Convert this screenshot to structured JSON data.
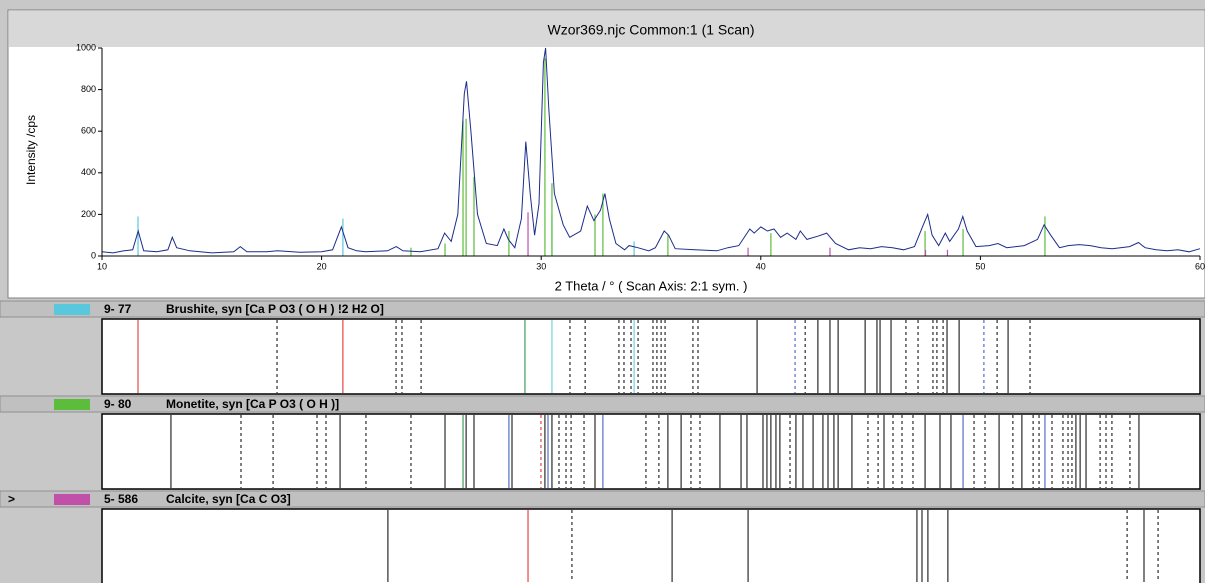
{
  "chart_data": {
    "type": "line",
    "title": "Wzor369.njc Common:1 (1 Scan)",
    "y_label": "Intensity /cps",
    "x_label": "2 Theta / °  ( Scan Axis: 2:1 sym. )",
    "xlim": [
      10,
      60
    ],
    "xticks": [
      10,
      20,
      30,
      40,
      50,
      60
    ],
    "ylim": [
      0,
      1000
    ],
    "yticks": [
      0,
      200,
      400,
      600,
      800,
      1000
    ],
    "series": [
      {
        "color": "#1c2c8c",
        "x": [
          10,
          10.5,
          11,
          11.4,
          11.65,
          11.9,
          12.5,
          13,
          13.2,
          13.4,
          14,
          15,
          16,
          16.3,
          16.6,
          17.5,
          18,
          19,
          20,
          20.5,
          20.9,
          21.2,
          21.6,
          22,
          23,
          23.4,
          23.7,
          24.5,
          25.3,
          25.6,
          25.9,
          26.2,
          26.5,
          26.6,
          26.8,
          27.1,
          27.5,
          28,
          28.3,
          28.5,
          28.8,
          29.1,
          29.3,
          29.5,
          29.7,
          29.9,
          30.1,
          30.2,
          30.35,
          30.6,
          31,
          31.3,
          31.8,
          32.1,
          32.4,
          32.7,
          32.9,
          33.1,
          33.4,
          33.8,
          34,
          34.4,
          34.9,
          35.2,
          35.6,
          35.8,
          36.1,
          37,
          38,
          38.5,
          39,
          39.5,
          39.7,
          40,
          40.3,
          40.6,
          40.9,
          41.2,
          41.6,
          41.8,
          42.1,
          42.6,
          43,
          43.4,
          44,
          44.5,
          45,
          45.5,
          46,
          46.5,
          47,
          47.4,
          47.6,
          47.8,
          48.1,
          48.4,
          48.6,
          49,
          49.2,
          49.4,
          49.8,
          50.4,
          50.8,
          51.2,
          52,
          52.6,
          52.9,
          53.2,
          53.6,
          54,
          54.5,
          55,
          55.5,
          56,
          56.8,
          57.2,
          57.5,
          58,
          58.5,
          59,
          59.5,
          60
        ],
        "values": [
          20,
          15,
          25,
          30,
          120,
          25,
          20,
          30,
          90,
          40,
          25,
          15,
          20,
          45,
          20,
          20,
          25,
          18,
          20,
          30,
          140,
          40,
          25,
          20,
          25,
          45,
          25,
          20,
          35,
          110,
          70,
          200,
          780,
          840,
          600,
          200,
          60,
          50,
          130,
          80,
          40,
          180,
          550,
          300,
          100,
          250,
          930,
          1000,
          700,
          300,
          150,
          90,
          120,
          240,
          170,
          220,
          300,
          180,
          60,
          30,
          50,
          40,
          25,
          40,
          120,
          100,
          35,
          30,
          25,
          40,
          50,
          130,
          110,
          140,
          120,
          130,
          90,
          110,
          80,
          120,
          80,
          95,
          110,
          60,
          30,
          40,
          35,
          45,
          40,
          30,
          45,
          150,
          200,
          100,
          50,
          110,
          70,
          130,
          190,
          120,
          45,
          50,
          60,
          40,
          50,
          80,
          150,
          100,
          40,
          50,
          55,
          50,
          40,
          35,
          45,
          65,
          40,
          30,
          25,
          30,
          20,
          35
        ]
      }
    ]
  },
  "phases": [
    {
      "code": "9- 77",
      "name": "Brushite, syn  [Ca P O3 ( O H ) !2 H2 O]",
      "color": "#5ac8dc",
      "stick_x": [
        11.64,
        20.97,
        30.49,
        34.23
      ],
      "stick_y": [
        190,
        180,
        200,
        70
      ],
      "line_x": [
        11.64,
        17.97,
        20.97,
        23.39,
        23.66,
        24.53,
        29.26,
        30.49,
        31.31,
        32.0,
        33.54,
        33.77,
        34.09,
        34.23,
        34.41,
        35.09,
        35.27,
        35.46,
        35.64,
        36.91,
        37.14,
        39.83,
        41.56,
        42.02,
        42.6,
        43.15,
        43.52,
        44.75,
        45.29,
        45.43,
        45.93,
        46.61,
        47.16,
        47.84,
        48.02,
        48.3,
        48.48,
        49.03,
        50.16,
        50.76,
        51.26,
        52.26
      ],
      "line_color": [
        "#e02020",
        "#000000",
        "#e02020",
        "#000000",
        "#000000",
        "#000000",
        "#1a8a3a",
        "#5ac8dc",
        "#000000",
        "#000000",
        "#000000",
        "#000000",
        "#000000",
        "#5ac8dc",
        "#000000",
        "#000000",
        "#000000",
        "#000000",
        "#000000",
        "#000000",
        "#000000",
        "#000000",
        "#3050c0",
        "#000000",
        "#000000",
        "#000000",
        "#000000",
        "#000000",
        "#000000",
        "#000000",
        "#000000",
        "#000000",
        "#000000",
        "#000000",
        "#000000",
        "#000000",
        "#000000",
        "#000000",
        "#3050c0",
        "#000000",
        "#000000",
        "#000000"
      ],
      "line_dashed": [
        false,
        true,
        false,
        true,
        true,
        true,
        false,
        false,
        true,
        true,
        true,
        true,
        true,
        false,
        true,
        true,
        true,
        true,
        true,
        true,
        true,
        false,
        true,
        true,
        false,
        false,
        false,
        false,
        false,
        false,
        false,
        true,
        true,
        true,
        true,
        true,
        false,
        false,
        true,
        true,
        false,
        true
      ]
    },
    {
      "code": "9- 80",
      "name": "Monetite, syn  [Ca P O3 ( O H )]",
      "color": "#5cbc3c",
      "stick_x": [
        24.07,
        25.62,
        26.44,
        26.58,
        26.94,
        28.53,
        30.17,
        30.49,
        32.45,
        32.81,
        35.77,
        40.46,
        47.48,
        49.21,
        52.94
      ],
      "stick_y": [
        40,
        60,
        650,
        660,
        380,
        120,
        950,
        350,
        200,
        300,
        100,
        110,
        120,
        130,
        190
      ],
      "line_x": [
        13.14,
        16.33,
        17.79,
        19.79,
        20.2,
        20.84,
        22.02,
        24.07,
        25.62,
        26.44,
        26.58,
        26.94,
        28.53,
        28.67,
        29.99,
        30.17,
        30.31,
        30.49,
        30.81,
        31.13,
        31.36,
        31.95,
        32.45,
        32.81,
        34.77,
        35.36,
        35.77,
        36.37,
        36.82,
        37.23,
        38.14,
        39.1,
        39.37,
        40.1,
        40.28,
        40.46,
        40.69,
        40.87,
        41.33,
        41.6,
        41.92,
        42.38,
        42.83,
        43.06,
        43.33,
        43.52,
        44.15,
        44.88,
        45.34,
        45.61,
        46.02,
        46.43,
        46.93,
        47.48,
        48.16,
        48.66,
        49.21,
        49.71,
        50.21,
        50.85,
        51.48,
        51.89,
        52.4,
        52.67,
        52.94,
        53.26,
        53.76,
        53.99,
        54.17,
        54.35,
        54.54,
        54.81,
        55.45,
        55.72,
        55.99,
        56.81,
        57.22
      ],
      "line_color": [
        "#000000",
        "#000000",
        "#000000",
        "#000000",
        "#000000",
        "#000000",
        "#000000",
        "#000000",
        "#000000",
        "#1a8a3a",
        "#000000",
        "#000000",
        "#3050c0",
        "#000000",
        "#e02020",
        "#000000",
        "#3050c0",
        "#000000",
        "#000000",
        "#000000",
        "#000000",
        "#000000",
        "#000000",
        "#3050c0",
        "#000000",
        "#000000",
        "#000000",
        "#000000",
        "#000000",
        "#000000",
        "#000000",
        "#000000",
        "#000000",
        "#000000",
        "#000000",
        "#000000",
        "#000000",
        "#000000",
        "#000000",
        "#000000",
        "#000000",
        "#000000",
        "#000000",
        "#000000",
        "#000000",
        "#000000",
        "#000000",
        "#000000",
        "#000000",
        "#000000",
        "#000000",
        "#000000",
        "#000000",
        "#000000",
        "#000000",
        "#000000",
        "#3050c0",
        "#000000",
        "#000000",
        "#000000",
        "#000000",
        "#000000",
        "#000000",
        "#000000",
        "#3050c0",
        "#000000",
        "#000000",
        "#000000",
        "#000000",
        "#000000",
        "#000000",
        "#000000",
        "#000000",
        "#000000",
        "#000000",
        "#000000",
        "#000000"
      ],
      "line_dashed": [
        false,
        true,
        true,
        true,
        true,
        false,
        true,
        true,
        false,
        false,
        false,
        false,
        false,
        false,
        true,
        false,
        false,
        false,
        true,
        true,
        true,
        true,
        false,
        false,
        true,
        true,
        false,
        false,
        true,
        true,
        false,
        false,
        false,
        false,
        false,
        false,
        false,
        false,
        true,
        false,
        false,
        false,
        false,
        false,
        false,
        false,
        false,
        true,
        true,
        false,
        true,
        true,
        true,
        false,
        false,
        false,
        false,
        true,
        true,
        false,
        true,
        false,
        true,
        true,
        false,
        true,
        true,
        true,
        true,
        false,
        false,
        false,
        true,
        true,
        true,
        true,
        false
      ]
    },
    {
      "code": "5- 586",
      "name": "Calcite, syn  [Ca C O3]",
      "color": "#c050a8",
      "current": ">",
      "stick_x": [
        29.4,
        39.42,
        43.15,
        47.5,
        48.5
      ],
      "stick_y": [
        210,
        40,
        40,
        30,
        30
      ],
      "line_x": [
        23.02,
        29.4,
        31.4,
        35.96,
        39.42,
        47.11,
        47.34,
        47.61,
        48.52,
        56.68,
        57.45,
        58.09
      ],
      "line_color": [
        "#000000",
        "#e02020",
        "#000000",
        "#000000",
        "#000000",
        "#000000",
        "#000000",
        "#000000",
        "#000000",
        "#000000",
        "#000000",
        "#000000"
      ],
      "line_dashed": [
        false,
        false,
        true,
        false,
        false,
        false,
        false,
        false,
        false,
        true,
        false,
        true
      ]
    }
  ]
}
